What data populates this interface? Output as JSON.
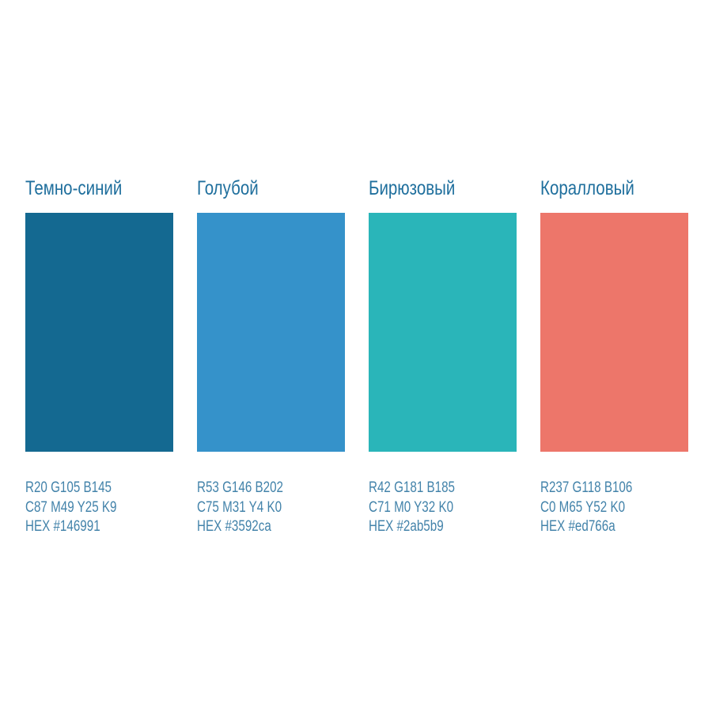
{
  "page": {
    "background": "#ffffff",
    "title_text_color": "#1f6f9d",
    "spec_text_color": "#4383aa"
  },
  "palette": {
    "swatches": [
      {
        "name": "Темно-синий",
        "color": "#146991",
        "rgb": "R20 G105 B145",
        "cmyk": "C87 M49 Y25 K9",
        "hex": "HEX #146991"
      },
      {
        "name": "Голубой",
        "color": "#3592ca",
        "rgb": "R53 G146 B202",
        "cmyk": "C75 M31 Y4 K0",
        "hex": "HEX #3592ca"
      },
      {
        "name": "Бирюзовый",
        "color": "#2ab5b9",
        "rgb": "R42 G181 B185",
        "cmyk": "C71 M0 Y32 K0",
        "hex": "HEX #2ab5b9"
      },
      {
        "name": "Коралловый",
        "color": "#ed766a",
        "rgb": "R237 G118 B106",
        "cmyk": "C0 M65 Y52 K0",
        "hex": "HEX #ed766a"
      }
    ]
  }
}
